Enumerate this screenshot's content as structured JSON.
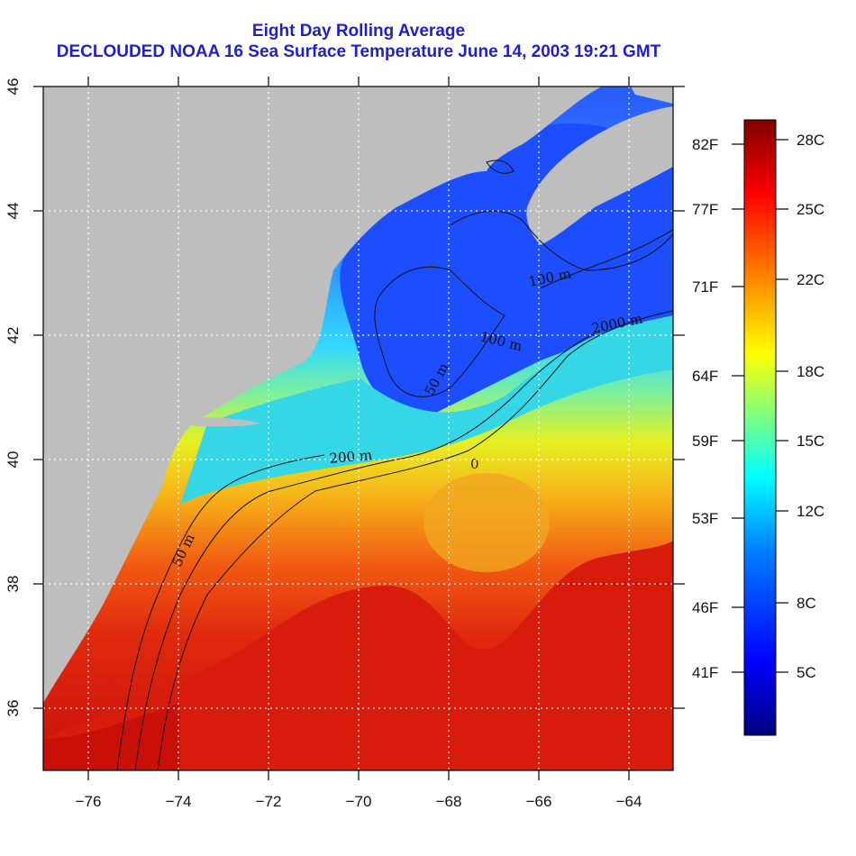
{
  "title_line1": "Eight Day Rolling Average",
  "title_line2": "DECLOUDED NOAA 16 Sea Surface Temperature June 14, 2003 19:21 GMT",
  "map": {
    "lon_range": [
      -77,
      -63
    ],
    "lat_range": [
      35,
      46
    ],
    "x_ticks": [
      "−76",
      "−74",
      "−72",
      "−70",
      "−68",
      "−66",
      "−64"
    ],
    "y_ticks": [
      "36",
      "38",
      "40",
      "42",
      "44",
      "46"
    ],
    "grid": "dotted white",
    "land_color": "#bebebe",
    "contours": [
      "50 m",
      "100 m",
      "200 m",
      "2000 m",
      "50 m",
      "100 m",
      "0"
    ]
  },
  "colorbar": {
    "fahrenheit_labels": [
      "82F",
      "77F",
      "71F",
      "64F",
      "59F",
      "53F",
      "46F",
      "41F"
    ],
    "celsius_labels": [
      "28C",
      "25C",
      "22C",
      "18C",
      "15C",
      "12C",
      "8C",
      "5C"
    ],
    "colors": [
      "#00007f",
      "#0000ff",
      "#007fff",
      "#00ffff",
      "#7fff7f",
      "#ffff00",
      "#ff7f00",
      "#ff0000",
      "#7f0000"
    ]
  }
}
